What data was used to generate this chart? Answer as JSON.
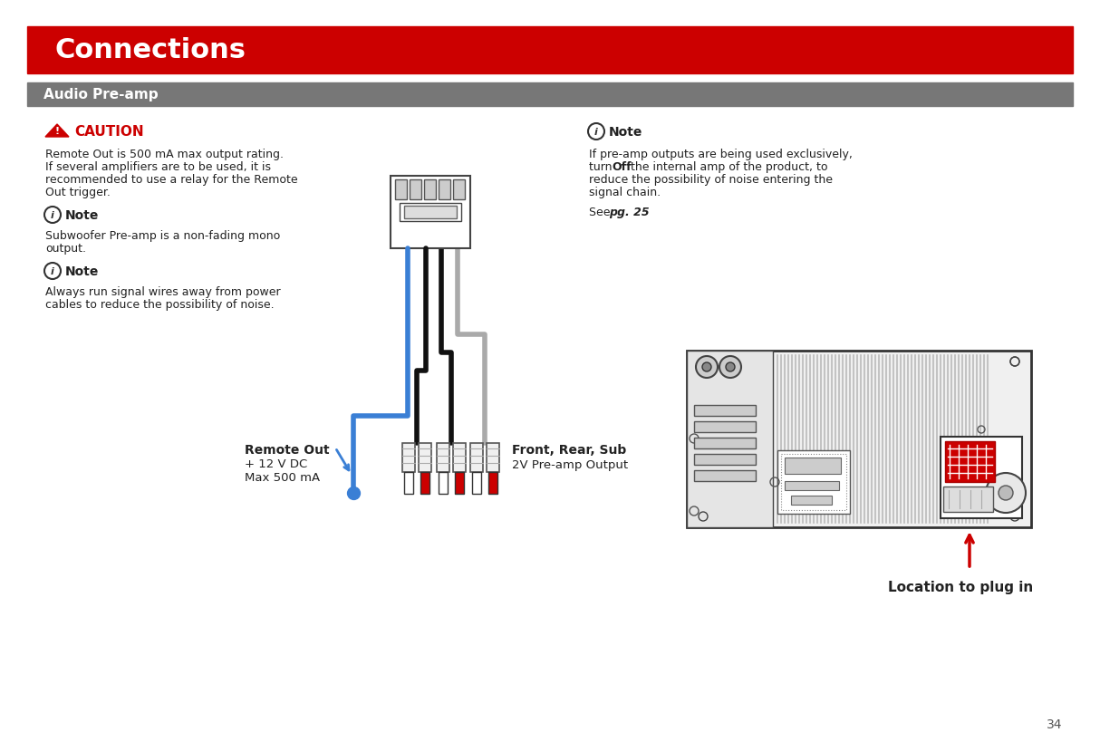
{
  "title": "Connections",
  "title_bg": "#cc0000",
  "title_color": "#ffffff",
  "section_title": "Audio Pre-amp",
  "section_bg": "#777777",
  "section_color": "#ffffff",
  "bg_color": "#ffffff",
  "caution_title": "CAUTION",
  "caution_text_line1": "Remote Out is 500 mA max output rating.",
  "caution_text_line2": "If several amplifiers are to be used, it is",
  "caution_text_line3": "recommended to use a relay for the Remote",
  "caution_text_line4": "Out trigger.",
  "note1_text_line1": "Subwoofer Pre-amp is a non-fading mono",
  "note1_text_line2": "output.",
  "note2_text_line1": "Always run signal wires away from power",
  "note2_text_line2": "cables to reduce the possibility of noise.",
  "note3_text_line1": "If pre-amp outputs are being used exclusively,",
  "note3_text_line2a": "turn ",
  "note3_text_line2b": "Off",
  "note3_text_line2c": " the internal amp of the product, to",
  "note3_text_line3": "reduce the possibility of noise entering the",
  "note3_text_line4": "signal chain.",
  "see_text": "See ",
  "see_bold": "pg. 25",
  "remote_label1": "Remote Out",
  "remote_label2": "+ 12 V DC",
  "remote_label3": "Max 500 mA",
  "front_label1": "Front, Rear, Sub",
  "front_label2": "2V Pre-amp Output",
  "location_label": "Location to plug in",
  "page_num": "34",
  "wire_blue": "#3a7fd5",
  "wire_black": "#111111",
  "wire_gray": "#aaaaaa",
  "rca_red": "#cc0000",
  "arrow_red": "#cc0000",
  "text_dark": "#222222"
}
